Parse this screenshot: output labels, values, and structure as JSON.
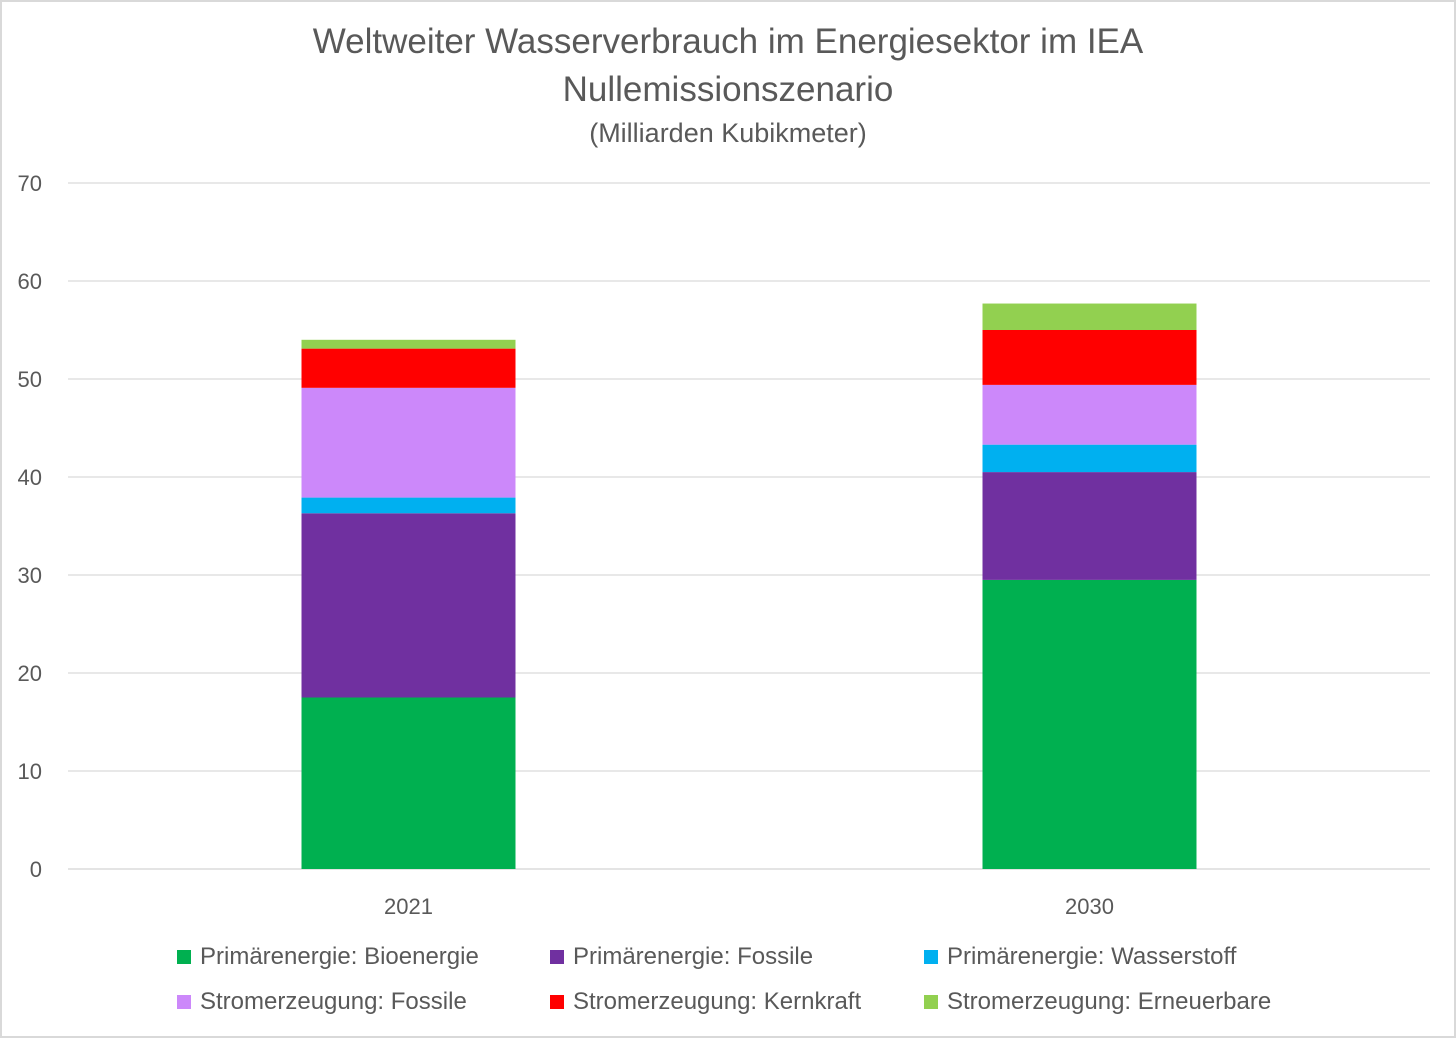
{
  "chart_data": {
    "type": "bar",
    "stacked": true,
    "title": "Weltweiter Wasserverbrauch im Energiesektor im IEA",
    "title_line2": "Nullemissionszenario",
    "subtitle": "(Milliarden Kubikmeter)",
    "categories": [
      "2021",
      "2030"
    ],
    "ylim": [
      0,
      70
    ],
    "yticks": [
      0,
      10,
      20,
      30,
      40,
      50,
      60,
      70
    ],
    "grid": true,
    "legend_position": "bottom",
    "series": [
      {
        "name": "Primärenergie: Bioenergie",
        "color": "#00b050",
        "values": [
          17.5,
          29.5
        ]
      },
      {
        "name": "Primärenergie: Fossile",
        "color": "#7030a0",
        "values": [
          18.8,
          11.0
        ]
      },
      {
        "name": "Primärenergie: Wasserstoff",
        "color": "#00b0f0",
        "values": [
          1.6,
          2.8
        ]
      },
      {
        "name": "Stromerzeugung: Fossile",
        "color": "#cc88fa",
        "values": [
          11.2,
          6.1
        ]
      },
      {
        "name": "Stromerzeugung: Kernkraft",
        "color": "#ff0000",
        "values": [
          4.0,
          5.6
        ]
      },
      {
        "name": "Stromerzeugung: Erneuerbare",
        "color": "#92d050",
        "values": [
          0.9,
          2.7
        ]
      }
    ]
  }
}
